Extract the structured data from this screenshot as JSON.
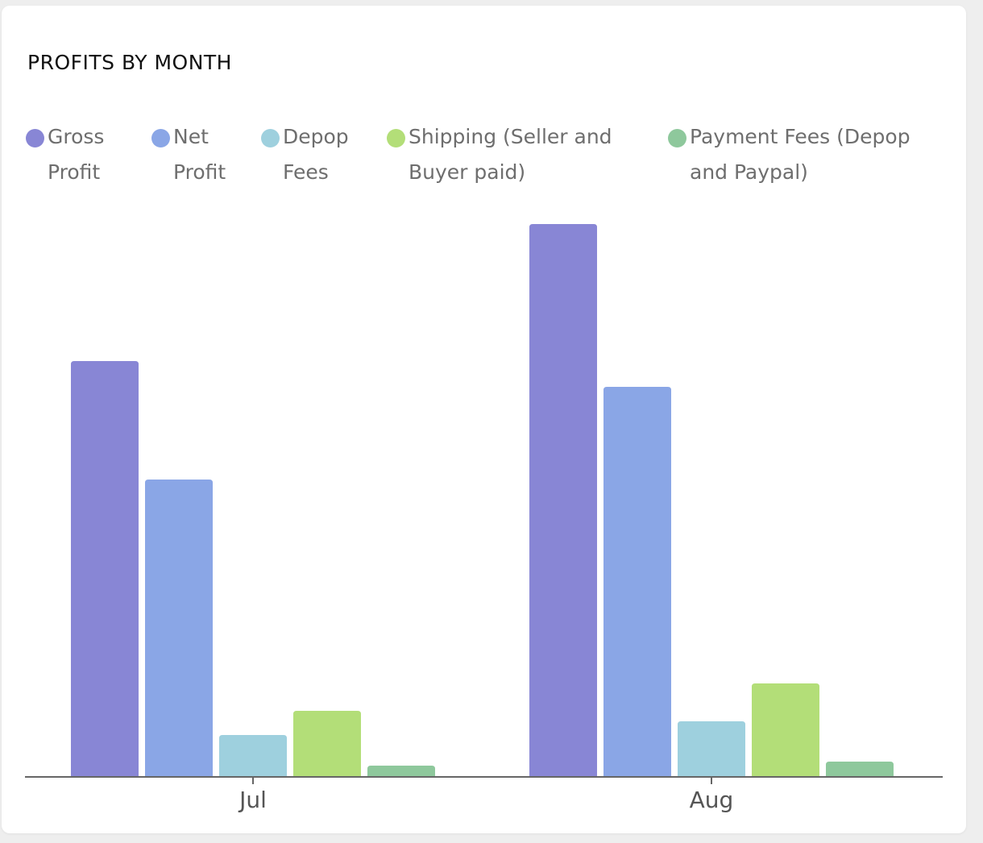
{
  "chart_data": {
    "type": "bar",
    "title": "PROFITS BY MONTH",
    "xlabel": "",
    "ylabel": "",
    "categories": [
      "Jul",
      "Aug"
    ],
    "ylim": [
      0,
      700
    ],
    "grid": false,
    "legend_position": "top",
    "series": [
      {
        "name": "Gross Profit",
        "values": [
          516,
          686
        ],
        "color": "#8886d5"
      },
      {
        "name": "Net Profit",
        "values": [
          369,
          484
        ],
        "color": "#8aa6e6"
      },
      {
        "name": "Depop Fees",
        "values": [
          52,
          69
        ],
        "color": "#9ed0de"
      },
      {
        "name": "Shipping (Seller and Buyer paid)",
        "values": [
          82,
          116
        ],
        "color": "#b3de78"
      },
      {
        "name": "Payment Fees (Depop and Paypal)",
        "values": [
          14,
          19
        ],
        "color": "#8ec89c"
      }
    ]
  }
}
